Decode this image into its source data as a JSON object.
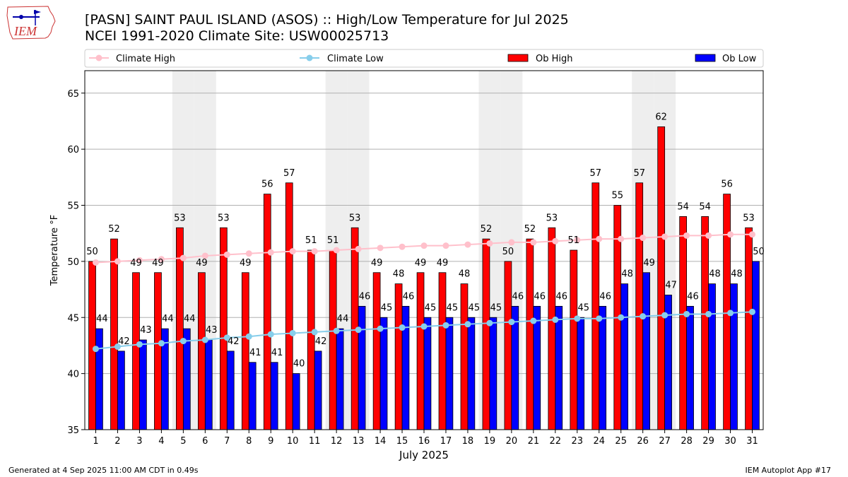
{
  "logo": {
    "text": "IEM"
  },
  "header": {
    "title": "[PASN] SAINT PAUL ISLAND (ASOS) :: High/Low Temperature for Jul 2025",
    "subtitle": "NCEI 1991-2020 Climate Site: USW00025713"
  },
  "footer": {
    "generated": "Generated at 4 Sep 2025 11:00 AM CDT in 0.49s",
    "app": "IEM Autoplot App #17"
  },
  "colors": {
    "ob_high": "#ff0000",
    "ob_low": "#0000ff",
    "climate_high": "#ffc0cb",
    "climate_low": "#87ceeb",
    "weekend_band": "#eeeeee"
  },
  "chart_data": {
    "type": "bar",
    "title": "[PASN] SAINT PAUL ISLAND (ASOS) :: High/Low Temperature for Jul 2025",
    "xlabel": "July 2025",
    "ylabel": "Temperature °F",
    "ylim": [
      35,
      67
    ],
    "yticks": [
      35,
      40,
      45,
      50,
      55,
      60,
      65
    ],
    "grid": true,
    "legend_position": "top",
    "categories": [
      "1",
      "2",
      "3",
      "4",
      "5",
      "6",
      "7",
      "8",
      "9",
      "10",
      "11",
      "12",
      "13",
      "14",
      "15",
      "16",
      "17",
      "18",
      "19",
      "20",
      "21",
      "22",
      "23",
      "24",
      "25",
      "26",
      "27",
      "28",
      "29",
      "30",
      "31"
    ],
    "shaded_days": [
      5,
      6,
      12,
      13,
      19,
      20,
      26,
      27
    ],
    "series": [
      {
        "name": "Ob High",
        "kind": "bar",
        "values": [
          50,
          52,
          49,
          49,
          53,
          49,
          53,
          49,
          56,
          57,
          51,
          51,
          53,
          49,
          48,
          49,
          49,
          48,
          52,
          50,
          52,
          53,
          51,
          57,
          55,
          57,
          62,
          54,
          54,
          56,
          53
        ]
      },
      {
        "name": "Ob Low",
        "kind": "bar",
        "values": [
          44,
          42,
          43,
          44,
          44,
          43,
          42,
          41,
          41,
          40,
          42,
          44,
          46,
          45,
          46,
          45,
          45,
          45,
          45,
          46,
          46,
          46,
          45,
          46,
          48,
          49,
          47,
          46,
          48,
          48,
          50
        ]
      },
      {
        "name": "Climate High",
        "kind": "line",
        "values": [
          49.9,
          50.0,
          50.1,
          50.2,
          50.3,
          50.5,
          50.6,
          50.7,
          50.8,
          50.9,
          50.9,
          51.0,
          51.1,
          51.2,
          51.3,
          51.4,
          51.4,
          51.5,
          51.6,
          51.7,
          51.7,
          51.8,
          51.9,
          52.0,
          52.0,
          52.1,
          52.2,
          52.3,
          52.3,
          52.4,
          52.4
        ]
      },
      {
        "name": "Climate Low",
        "kind": "line",
        "values": [
          42.2,
          42.4,
          42.6,
          42.7,
          42.9,
          43.0,
          43.2,
          43.3,
          43.5,
          43.6,
          43.7,
          43.8,
          43.9,
          44.0,
          44.1,
          44.2,
          44.3,
          44.4,
          44.5,
          44.6,
          44.7,
          44.8,
          44.9,
          44.9,
          45.0,
          45.1,
          45.2,
          45.3,
          45.3,
          45.4,
          45.5
        ]
      }
    ],
    "legend": [
      "Climate High",
      "Climate Low",
      "Ob High",
      "Ob Low"
    ]
  }
}
